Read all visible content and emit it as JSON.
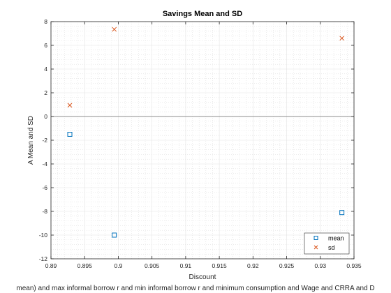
{
  "chart_data": {
    "type": "scatter",
    "title": "Savings Mean and SD",
    "xlabel": "Discount",
    "ylabel": "A Mean and SD",
    "bottom_caption": "mean) and max informal borrow r and min informal borrow r and minimum consumption and Wage and CRRA and D",
    "xlim": [
      0.89,
      0.935
    ],
    "ylim": [
      -12,
      8
    ],
    "x_ticks": [
      "0.89",
      "0.895",
      "0.9",
      "0.905",
      "0.91",
      "0.915",
      "0.92",
      "0.925",
      "0.93",
      "0.935"
    ],
    "y_ticks": [
      "-12",
      "-10",
      "-8",
      "-6",
      "-4",
      "-2",
      "0",
      "2",
      "4",
      "6",
      "8"
    ],
    "grid": true,
    "minor_grid": true,
    "zero_line": true,
    "legend_position": "bottom-right",
    "series": [
      {
        "name": "mean",
        "marker": "square",
        "color": "#0072BD",
        "points": [
          [
            0.8928,
            -1.5
          ],
          [
            0.8994,
            -10.0
          ],
          [
            0.9332,
            -8.1
          ]
        ]
      },
      {
        "name": "sd",
        "marker": "x",
        "color": "#D95319",
        "points": [
          [
            0.8928,
            0.95
          ],
          [
            0.8994,
            7.35
          ],
          [
            0.9332,
            6.6
          ]
        ]
      }
    ]
  }
}
